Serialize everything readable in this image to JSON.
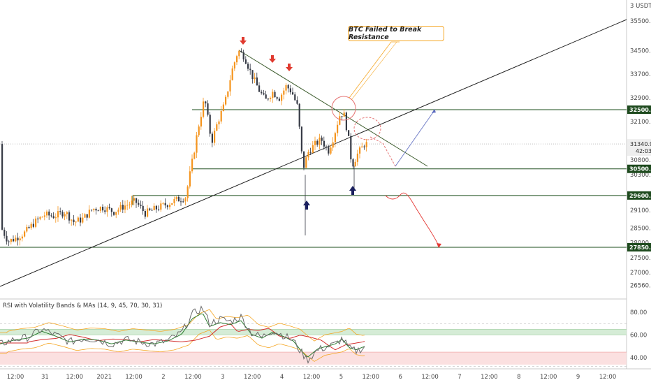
{
  "chart_data": {
    "type": "candlestick",
    "symbol_currency": "USDT",
    "price_axis": {
      "range": [
        26300,
        36400
      ],
      "ticks": [
        26560,
        27000,
        27500,
        28000,
        28500,
        29100,
        29600,
        30300,
        30800,
        31340.91,
        32100,
        32500,
        32900,
        33700,
        34500,
        35500
      ],
      "tick_labels": [
        "26560.00",
        "27000.00",
        "27500.00",
        "28000.00",
        "28500.00",
        "29100.00",
        "29600.00",
        "30300.00",
        "30800.00",
        "31340.91",
        "32100.00",
        "32500.00",
        "32900.00",
        "33700.00",
        "34500.00",
        "35500.00"
      ],
      "currency_label": "USDT",
      "currency_prefix": "3"
    },
    "current_price": {
      "value": 31340.91,
      "label": "31340.91",
      "countdown": "42:03"
    },
    "levels": [
      {
        "value": 32500,
        "label": "32500.00"
      },
      {
        "value": 30500,
        "label": "30500.00"
      },
      {
        "value": 29600,
        "label": "29600.00"
      },
      {
        "value": 27850,
        "label": "27850.00"
      }
    ],
    "time_axis": {
      "labels": [
        "12:00",
        "31",
        "12:00",
        "2021",
        "12:00",
        "2",
        "12:00",
        "3",
        "12:00",
        "4",
        "12:00",
        "5",
        "12:00",
        "6",
        "12:00",
        "7",
        "12:00",
        "8",
        "12:00",
        "9",
        "12:00"
      ]
    },
    "annotation": {
      "text": "BTC Failed to Break Resistance"
    },
    "indicator": {
      "title": "RSI with Volatility Bands & MAs (14, 9, 45, 70, 30, 31)",
      "range": [
        34,
        88
      ],
      "ticks": [
        80,
        60,
        40
      ],
      "tick_labels": [
        "80.00",
        "60.00",
        "40.00"
      ],
      "green_zone": [
        60,
        65
      ],
      "red_zone": [
        30,
        45
      ]
    },
    "colors": {
      "up": "#f5941d",
      "down": "#363a45",
      "level_line": "#1b4d1b",
      "level_tag": "#1e4a1e",
      "down_arrow": "#e03a2f",
      "up_arrow": "#1a1f5e",
      "rsi": "#6b6b6b",
      "rsi_ma_green": "#2e7d32",
      "rsi_ma_red": "#d32f2f",
      "band": "#f5a623"
    }
  }
}
